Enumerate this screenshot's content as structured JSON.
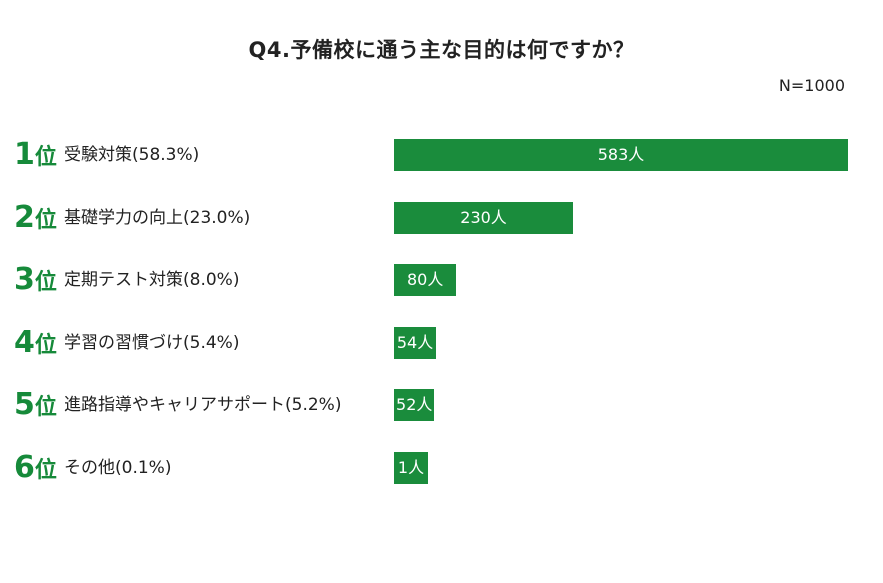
{
  "title": "Q4.予備校に通う主な目的は何ですか？",
  "sample_size_label": "N=1000",
  "colors": {
    "bar": "#1a8c3c",
    "rank": "#168a3a"
  },
  "chart_data": {
    "type": "bar",
    "orientation": "horizontal",
    "title": "Q4.予備校に通う主な目的は何ですか？",
    "categories": [
      "受験対策",
      "基礎学力の向上",
      "定期テスト対策",
      "学習の習慣づけ",
      "進路指導やキャリアサポート",
      "その他"
    ],
    "ranks": [
      "1",
      "2",
      "3",
      "4",
      "5",
      "6"
    ],
    "rank_unit": "位",
    "labels": [
      "受験対策(58.3%)",
      "基礎学力の向上(23.0%)",
      "定期テスト対策(8.0%)",
      "学習の習慣づけ(5.4%)",
      "進路指導やキャリアサポート(5.2%)",
      "その他(0.1%)"
    ],
    "values": [
      583,
      230,
      80,
      54,
      52,
      1
    ],
    "percentages": [
      58.3,
      23.0,
      8.0,
      5.4,
      5.2,
      0.1
    ],
    "value_labels": [
      "583人",
      "230人",
      "80人",
      "54人",
      "52人",
      "1人"
    ],
    "xlim": [
      0,
      583
    ]
  }
}
